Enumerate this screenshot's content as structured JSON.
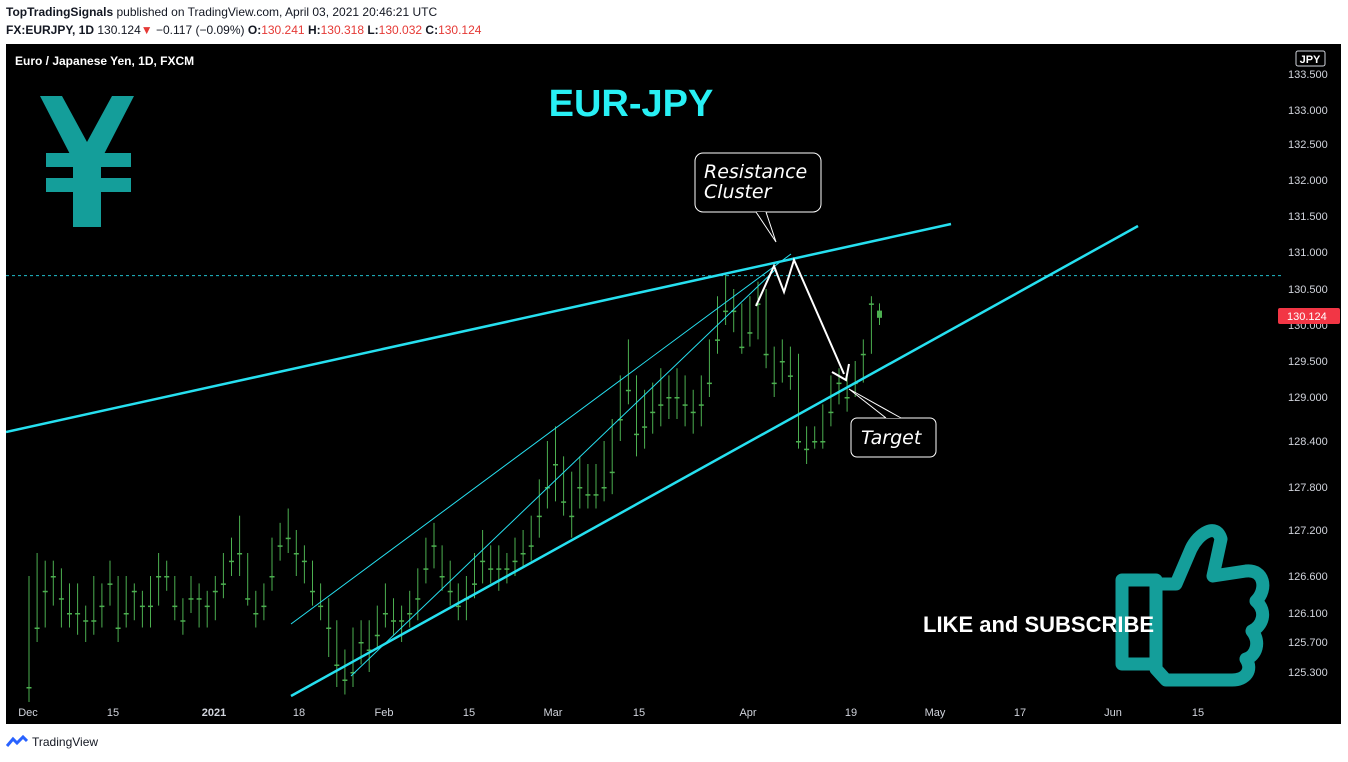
{
  "header": {
    "publisher": "TopTradingSignals",
    "published_text": "published on TradingView.com, April 03, 2021 20:46:21 UTC",
    "symbol": "FX:EURJPY, 1D",
    "last": "130.124",
    "change": "−0.117 (−0.09%)",
    "o_label": "O:",
    "o_value": "130.241",
    "h_label": "H:",
    "h_value": "130.318",
    "l_label": "L:",
    "l_value": "130.032",
    "c_label": "C:",
    "c_value": "130.124"
  },
  "colors": {
    "background": "#000000",
    "up": "#4caf50",
    "down": "#f23645",
    "trendline": "#26e0f0",
    "title": "#28f0f5",
    "yen": "#149e9a",
    "price_tag": "#f23645"
  },
  "chart_data": {
    "type": "candlestick",
    "instrument": "Euro / Japanese Yen, 1D, FXCM",
    "currency": "JPY",
    "title": "EUR-JPY",
    "x_tick_labels": [
      "Dec",
      "15",
      "2021",
      "18",
      "Feb",
      "15",
      "Mar",
      "15",
      "Apr",
      "19",
      "May",
      "17",
      "Jun",
      "15"
    ],
    "y_tick_labels": [
      "133.500",
      "133.000",
      "132.500",
      "132.000",
      "131.500",
      "131.000",
      "130.500",
      "130.000",
      "129.500",
      "129.000",
      "128.400",
      "127.800",
      "127.200",
      "126.600",
      "126.100",
      "125.700",
      "125.300"
    ],
    "last_price": "130.124",
    "current_level": 130.68,
    "annotations": {
      "resistance": "Resistance\nCluster",
      "target": "Target",
      "cta": "LIKE and SUBSCRIBE"
    },
    "candles": [
      [
        125.1,
        125.1,
        126.6,
        124.9
      ],
      [
        125.9,
        125.9,
        126.9,
        125.7
      ],
      [
        126.4,
        126.4,
        126.8,
        125.9
      ],
      [
        126.6,
        126.6,
        126.8,
        126.2
      ],
      [
        126.3,
        126.3,
        126.7,
        125.9
      ],
      [
        126.1,
        126.1,
        126.5,
        125.9
      ],
      [
        126.1,
        126.1,
        126.5,
        125.8
      ],
      [
        126.0,
        126.0,
        126.2,
        125.7
      ],
      [
        126.0,
        126.0,
        126.6,
        125.8
      ],
      [
        126.2,
        126.2,
        126.5,
        125.9
      ],
      [
        126.5,
        126.5,
        126.8,
        126.2
      ],
      [
        125.9,
        125.9,
        126.6,
        125.7
      ],
      [
        126.1,
        126.1,
        126.6,
        125.9
      ],
      [
        126.4,
        126.4,
        126.5,
        126.0
      ],
      [
        126.2,
        126.2,
        126.4,
        125.9
      ],
      [
        126.2,
        126.2,
        126.6,
        125.9
      ],
      [
        126.6,
        126.6,
        126.9,
        126.2
      ],
      [
        126.6,
        126.6,
        126.8,
        126.4
      ],
      [
        126.2,
        126.2,
        126.6,
        126.0
      ],
      [
        126.0,
        126.0,
        126.3,
        125.8
      ],
      [
        126.3,
        126.3,
        126.6,
        126.1
      ],
      [
        126.3,
        126.3,
        126.5,
        125.9
      ],
      [
        126.2,
        126.2,
        126.4,
        125.9
      ],
      [
        126.4,
        126.4,
        126.6,
        126.0
      ],
      [
        126.5,
        126.5,
        126.9,
        126.3
      ],
      [
        126.8,
        126.8,
        127.1,
        126.6
      ],
      [
        126.9,
        126.9,
        127.4,
        126.6
      ],
      [
        126.3,
        126.3,
        126.9,
        126.2
      ],
      [
        126.1,
        126.1,
        126.4,
        125.9
      ],
      [
        126.2,
        126.2,
        126.5,
        126.0
      ],
      [
        126.6,
        126.6,
        127.1,
        126.4
      ],
      [
        127.0,
        127.0,
        127.3,
        126.8
      ],
      [
        127.1,
        127.1,
        127.5,
        126.9
      ],
      [
        126.9,
        126.9,
        127.2,
        126.6
      ],
      [
        126.8,
        126.8,
        127.0,
        126.5
      ],
      [
        126.4,
        126.4,
        126.8,
        126.2
      ],
      [
        126.2,
        126.2,
        126.5,
        126.0
      ],
      [
        125.9,
        125.9,
        126.3,
        125.5
      ],
      [
        125.4,
        125.4,
        126.0,
        125.1
      ],
      [
        125.2,
        125.2,
        125.6,
        125.0
      ],
      [
        125.3,
        125.3,
        125.9,
        125.1
      ],
      [
        125.7,
        125.7,
        126.0,
        125.4
      ],
      [
        125.6,
        125.6,
        126.0,
        125.3
      ],
      [
        125.8,
        125.8,
        126.2,
        125.6
      ],
      [
        126.1,
        126.1,
        126.5,
        125.9
      ],
      [
        126.0,
        126.0,
        126.3,
        125.8
      ],
      [
        126.0,
        126.0,
        126.2,
        125.7
      ],
      [
        126.1,
        126.1,
        126.4,
        125.9
      ],
      [
        126.3,
        126.3,
        126.7,
        126.0
      ],
      [
        126.7,
        126.7,
        127.1,
        126.5
      ],
      [
        127.0,
        127.0,
        127.3,
        126.7
      ],
      [
        126.6,
        126.6,
        127.0,
        126.4
      ],
      [
        126.4,
        126.4,
        126.8,
        126.2
      ],
      [
        126.2,
        126.2,
        126.5,
        126.0
      ],
      [
        126.3,
        126.3,
        126.6,
        126.0
      ],
      [
        126.5,
        126.5,
        126.9,
        126.3
      ],
      [
        126.8,
        126.8,
        127.2,
        126.5
      ],
      [
        126.7,
        126.7,
        127.0,
        126.5
      ],
      [
        126.7,
        126.7,
        127.0,
        126.4
      ],
      [
        126.7,
        126.7,
        126.9,
        126.5
      ],
      [
        126.8,
        126.8,
        127.1,
        126.6
      ],
      [
        126.9,
        126.9,
        127.2,
        126.7
      ],
      [
        127.0,
        127.0,
        127.4,
        126.8
      ],
      [
        127.4,
        127.4,
        127.9,
        127.1
      ],
      [
        127.8,
        127.8,
        128.4,
        127.5
      ],
      [
        128.1,
        128.1,
        128.6,
        127.6
      ],
      [
        127.6,
        127.6,
        128.2,
        127.4
      ],
      [
        127.4,
        127.4,
        128.0,
        127.1
      ],
      [
        127.8,
        127.8,
        128.2,
        127.5
      ],
      [
        127.7,
        127.7,
        128.1,
        127.5
      ],
      [
        127.7,
        127.7,
        128.1,
        127.5
      ],
      [
        127.8,
        127.8,
        128.4,
        127.6
      ],
      [
        128.0,
        128.0,
        128.7,
        127.7
      ],
      [
        128.7,
        128.7,
        129.3,
        128.4
      ],
      [
        129.1,
        129.1,
        129.8,
        128.9
      ],
      [
        128.5,
        128.5,
        129.3,
        128.2
      ],
      [
        128.6,
        128.6,
        129.1,
        128.3
      ],
      [
        128.8,
        128.8,
        129.2,
        128.5
      ],
      [
        128.9,
        128.9,
        129.4,
        128.6
      ],
      [
        129.0,
        129.0,
        129.3,
        128.7
      ],
      [
        129.0,
        129.0,
        129.4,
        128.7
      ],
      [
        128.9,
        128.9,
        129.3,
        128.6
      ],
      [
        128.8,
        128.8,
        129.1,
        128.5
      ],
      [
        128.9,
        128.9,
        129.3,
        128.6
      ],
      [
        129.2,
        129.2,
        129.8,
        129.0
      ],
      [
        129.8,
        129.8,
        130.4,
        129.6
      ],
      [
        130.2,
        130.2,
        130.7,
        130.0
      ],
      [
        130.2,
        130.2,
        130.5,
        129.9
      ],
      [
        129.7,
        129.7,
        130.3,
        129.6
      ],
      [
        129.9,
        129.9,
        130.4,
        129.7
      ],
      [
        130.3,
        130.3,
        130.6,
        129.8
      ],
      [
        129.6,
        129.6,
        130.5,
        129.4
      ],
      [
        129.2,
        129.2,
        129.7,
        129.0
      ],
      [
        129.5,
        129.5,
        129.8,
        129.2
      ],
      [
        129.3,
        129.3,
        129.7,
        129.1
      ],
      [
        128.4,
        128.4,
        129.6,
        128.3
      ],
      [
        128.3,
        128.3,
        128.6,
        128.1
      ],
      [
        128.4,
        128.4,
        128.6,
        128.3
      ],
      [
        128.4,
        128.4,
        128.9,
        128.3
      ],
      [
        128.8,
        128.8,
        129.3,
        128.6
      ],
      [
        129.2,
        129.2,
        129.4,
        128.9
      ],
      [
        129.0,
        129.0,
        129.3,
        128.8
      ],
      [
        129.2,
        129.2,
        129.5,
        129.0
      ],
      [
        129.6,
        129.6,
        129.8,
        129.2
      ],
      [
        130.3,
        130.3,
        130.4,
        129.6
      ],
      [
        130.1,
        130.2,
        130.3,
        130.0
      ]
    ]
  }
}
